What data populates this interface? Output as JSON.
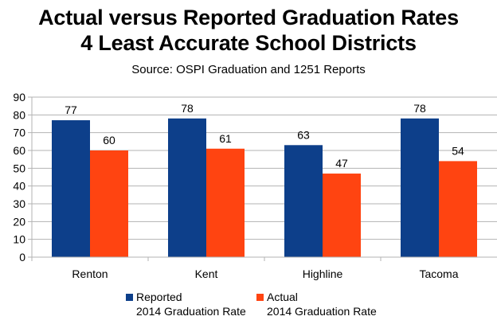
{
  "title_line1": "Actual versus Reported Graduation Rates",
  "title_line2": "4 Least Accurate School Districts",
  "subtitle": "Source: OSPI Graduation and 1251 Reports",
  "colors": {
    "reported": "#0d3f8a",
    "actual": "#ff4411",
    "grid": "#b3b3b3",
    "axis": "#b3b3b3"
  },
  "legend": [
    {
      "line1": "Reported",
      "line2": "2014 Graduation Rate"
    },
    {
      "line1": "Actual",
      "line2": "2014 Graduation Rate"
    }
  ],
  "chart_data": {
    "type": "bar",
    "categories": [
      "Renton",
      "Kent",
      "Highline",
      "Tacoma"
    ],
    "series": [
      {
        "name": "Reported 2014 Graduation Rate",
        "values": [
          77,
          78,
          63,
          78
        ]
      },
      {
        "name": "Actual 2014 Graduation Rate",
        "values": [
          60,
          61,
          47,
          54
        ]
      }
    ],
    "yticks": [
      0,
      10,
      20,
      30,
      40,
      50,
      60,
      70,
      80,
      90
    ],
    "ylim": [
      0,
      90
    ],
    "grid": true,
    "legend_position": "bottom",
    "data_labels": true
  }
}
